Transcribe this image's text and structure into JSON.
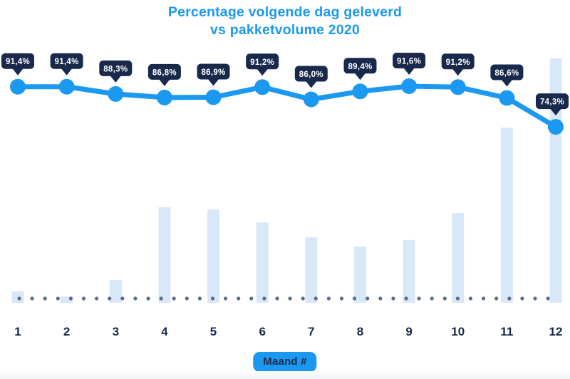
{
  "title": {
    "line1": "Percentage volgende dag geleverd",
    "line2": "vs pakketvolume 2020"
  },
  "chart_data": {
    "type": "combo",
    "title": "Percentage volgende dag geleverd vs pakketvolume 2020",
    "x_axis_badge": "Maand #",
    "categories": [
      "1",
      "2",
      "3",
      "4",
      "5",
      "6",
      "7",
      "8",
      "9",
      "10",
      "11",
      "12"
    ],
    "series": [
      {
        "name": "Percentage volgende dag geleverd",
        "type": "line",
        "unit": "%",
        "values": [
          91.4,
          91.4,
          88.3,
          86.8,
          86.9,
          91.2,
          86.0,
          89.4,
          91.6,
          91.2,
          86.6,
          74.3
        ],
        "point_labels": [
          "91,4%",
          "91,4%",
          "88,3%",
          "86,8%",
          "86,9%",
          "91,2%",
          "86,0%",
          "89,4%",
          "91,6%",
          "91,2%",
          "86,6%",
          "74,3%"
        ],
        "color": "#1b98f0"
      },
      {
        "name": "Pakketvolume 2020",
        "type": "bar",
        "unit": "relative volume (estimated from bar heights, max = 100)",
        "values": [
          4.7,
          2.6,
          9.3,
          39.1,
          38.2,
          32.9,
          26.8,
          23.0,
          25.7,
          36.7,
          71.7,
          100
        ],
        "color": "#d9e8f8"
      }
    ],
    "line_axis_range": [
      70,
      95
    ],
    "grid": false,
    "legend": false,
    "baseline_style": "dotted",
    "colors": {
      "accent_blue": "#1b98f0",
      "navy": "#18294b",
      "bar_fill": "#d9e8f8",
      "baseline_dot": "#5b6c8d",
      "callout_bg": "#18294b",
      "callout_text": "#ffffff",
      "axis_text": "#18294b"
    }
  }
}
